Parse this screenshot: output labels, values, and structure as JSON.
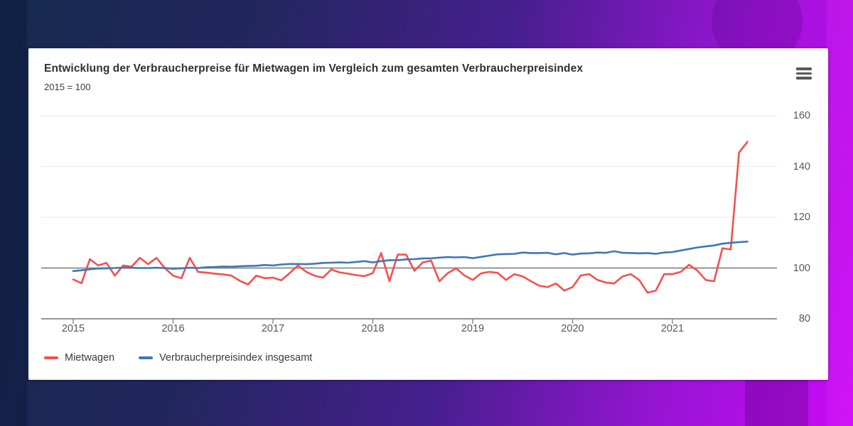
{
  "card": {
    "title": "Entwicklung der Verbraucherpreise für Mietwagen im Vergleich zum gesamten Verbraucherpreisindex",
    "subtitle": "2015 = 100",
    "menu_icon": "hamburger-menu-icon"
  },
  "colors": {
    "series_mietwagen": "#f5504e",
    "series_vpi": "#3e77b6",
    "grid_light": "#e7e7e7",
    "grid_dark": "#868686",
    "axis_text": "#57575a",
    "background_navy": "#152a4e",
    "background_magenta": "#c90af5"
  },
  "chart_data": {
    "type": "line",
    "title": "Entwicklung der Verbraucherpreise für Mietwagen im Vergleich zum gesamten Verbraucherpreisindex",
    "subtitle": "2015 = 100",
    "x_unit": "month",
    "x_start": "2015-01",
    "x_end": "2021-10",
    "x_tick_labels": [
      "2015",
      "2016",
      "2017",
      "2018",
      "2019",
      "2020",
      "2021"
    ],
    "y_ticks": [
      80,
      100,
      120,
      140,
      160
    ],
    "ylim": [
      80,
      160
    ],
    "baseline_value": 100,
    "grid": "horizontal",
    "legend_position": "bottom-left",
    "series": [
      {
        "name": "Mietwagen",
        "color": "#f5504e",
        "values": [
          95.5,
          94.0,
          103.5,
          101.0,
          102.0,
          97.0,
          101.0,
          100.5,
          104.0,
          101.5,
          104.0,
          100.0,
          97.0,
          96.0,
          104.0,
          98.5,
          98.2,
          97.8,
          97.5,
          97.0,
          95.0,
          93.5,
          97.0,
          96.0,
          96.2,
          95.2,
          98.0,
          101.0,
          98.5,
          97.0,
          96.2,
          99.4,
          98.3,
          97.8,
          97.2,
          96.8,
          98.0,
          105.9,
          94.8,
          105.3,
          105.3,
          98.9,
          102.2,
          102.9,
          94.8,
          98.0,
          99.9,
          97.1,
          95.3,
          97.9,
          98.5,
          98.1,
          95.3,
          97.6,
          96.7,
          94.8,
          93.0,
          92.5,
          93.9,
          91.1,
          92.5,
          97.1,
          97.6,
          95.3,
          94.3,
          93.9,
          96.7,
          97.6,
          95.3,
          90.3,
          91.1,
          97.6,
          97.6,
          98.5,
          101.3,
          99.0,
          95.3,
          94.8,
          107.8,
          107.3,
          145.5,
          149.7
        ]
      },
      {
        "name": "Verbraucherpreisindex insgesamt",
        "color": "#3e77b6",
        "values": [
          98.8,
          99.1,
          99.5,
          99.8,
          99.9,
          100.0,
          100.2,
          100.1,
          100.0,
          100.0,
          100.1,
          100.0,
          99.7,
          99.9,
          100.1,
          100.0,
          100.3,
          100.4,
          100.6,
          100.5,
          100.7,
          100.8,
          100.9,
          101.2,
          101.0,
          101.4,
          101.6,
          101.6,
          101.5,
          101.7,
          102.0,
          102.1,
          102.2,
          102.1,
          102.4,
          102.7,
          102.2,
          102.7,
          103.1,
          103.1,
          103.4,
          103.5,
          103.8,
          103.8,
          104.1,
          104.3,
          104.2,
          104.3,
          103.9,
          104.4,
          104.9,
          105.4,
          105.5,
          105.6,
          106.1,
          105.9,
          105.9,
          106.0,
          105.4,
          105.9,
          105.3,
          105.7,
          105.8,
          106.1,
          106.0,
          106.6,
          106.0,
          105.9,
          105.8,
          105.9,
          105.6,
          106.1,
          106.3,
          106.9,
          107.5,
          108.1,
          108.5,
          108.9,
          109.6,
          109.9,
          110.2,
          110.4
        ]
      }
    ]
  }
}
